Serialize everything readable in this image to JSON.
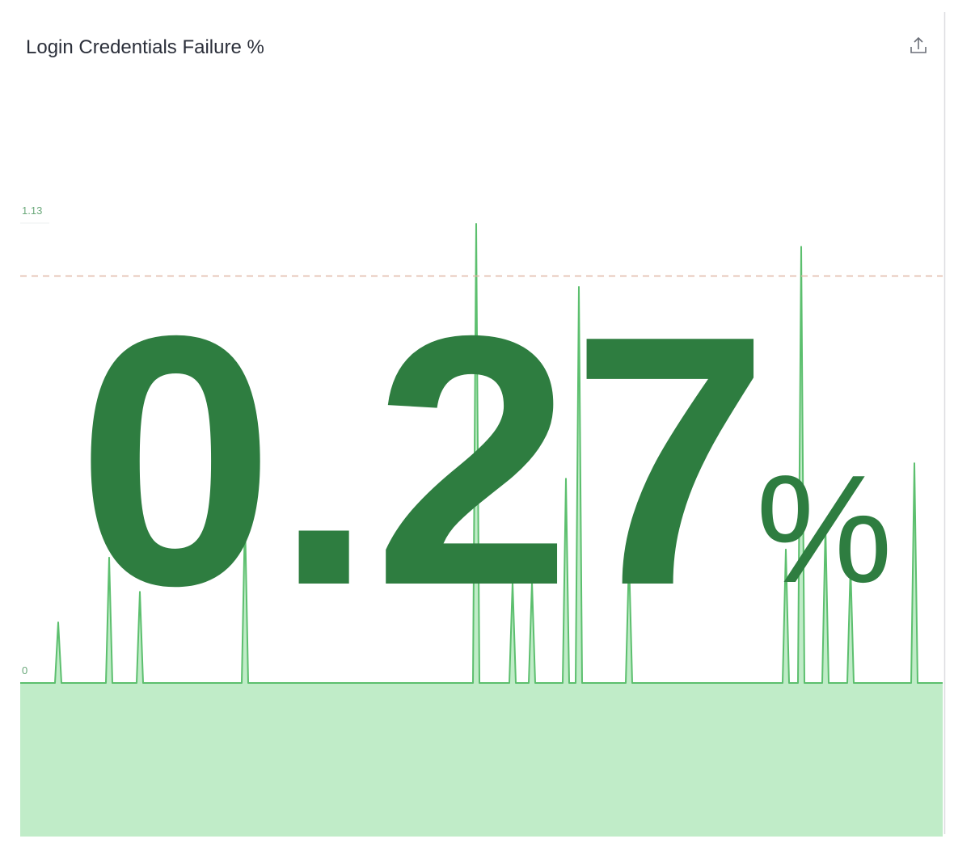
{
  "chart_data": {
    "type": "line",
    "title": "Login Credentials Failure %",
    "big_value": {
      "value": "0.27",
      "unit": "%"
    },
    "color": "#5cbf6e",
    "fill_color": "#c0ecc8",
    "threshold": 1.0,
    "threshold_color": "#e0b8a8",
    "xlim": [
      0,
      1141
    ],
    "ylim": [
      0,
      1.13
    ],
    "yticks": [
      0,
      1.13
    ],
    "series": [
      {
        "color": "#5cbf6e",
        "x": [
          0,
          43,
          47,
          51,
          106,
          110,
          114,
          144,
          148,
          152,
          274,
          278,
          282,
          560,
          564,
          568,
          605,
          609,
          613,
          629,
          633,
          637,
          671,
          675,
          679,
          687,
          691,
          695,
          749,
          753,
          757,
          943,
          947,
          951,
          962,
          966,
          970,
          992,
          996,
          1000,
          1023,
          1027,
          1031,
          1102,
          1106,
          1110,
          1141
        ],
        "values": [
          0,
          0,
          0.149,
          0,
          0,
          0.308,
          0,
          0,
          0.224,
          0,
          0,
          0.407,
          0,
          0,
          1.128,
          0,
          0,
          0.248,
          0,
          0,
          0.248,
          0,
          0,
          0.502,
          0,
          0,
          0.973,
          0,
          0,
          0.308,
          0,
          0,
          0.328,
          0,
          0,
          1.072,
          0,
          0,
          0.387,
          0,
          0,
          0.288,
          0,
          0,
          0.54,
          0,
          0
        ]
      }
    ]
  }
}
